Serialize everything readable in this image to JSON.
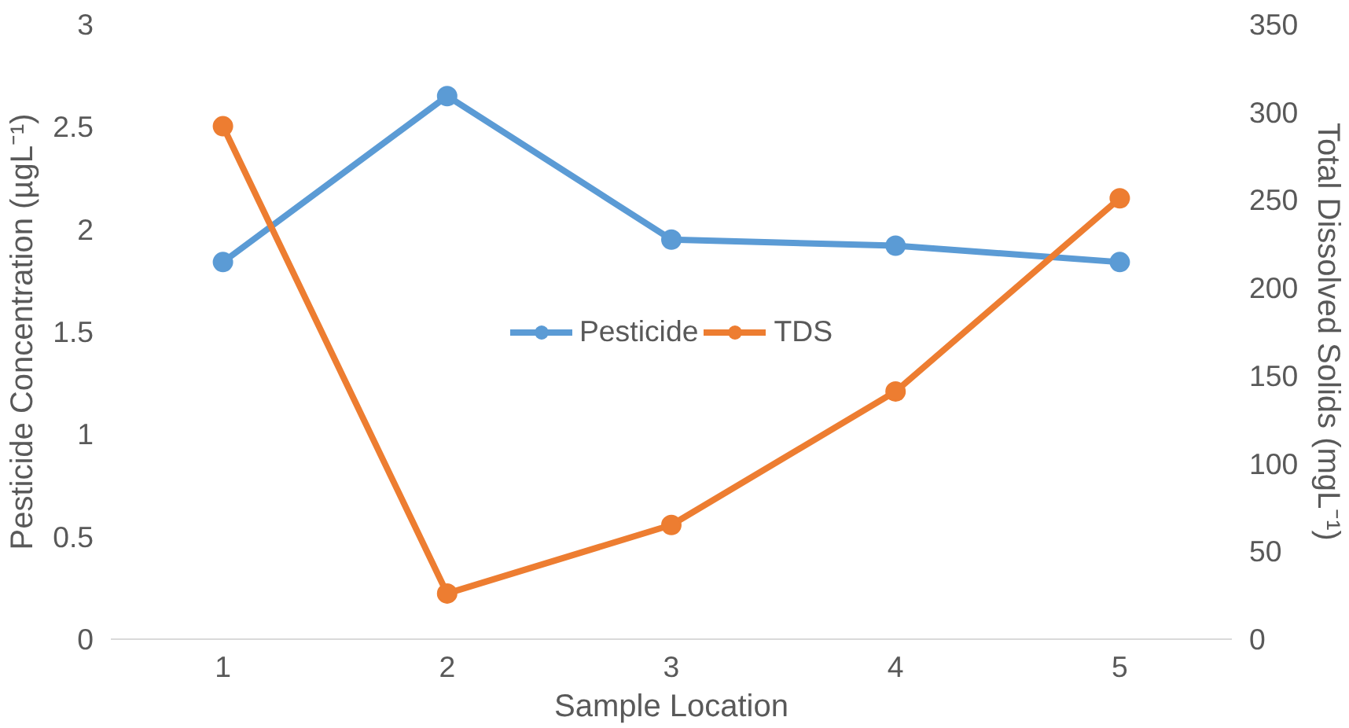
{
  "chart_data": {
    "type": "line",
    "xlabel": "Sample Location",
    "ylabel": "Pesticide Concentration (µgL⁻¹)",
    "y2label": "Total Dissolved Solids (mgL⁻¹)",
    "categories": [
      "1",
      "2",
      "3",
      "4",
      "5"
    ],
    "series": [
      {
        "name": "Pesticide",
        "color": "#5b9bd5",
        "values": [
          1.84,
          2.65,
          1.95,
          1.92,
          1.84
        ]
      },
      {
        "name": "TDS",
        "color": "#ed7d31",
        "axis": "y2",
        "values": [
          292,
          26,
          65,
          141,
          251
        ]
      }
    ],
    "ylim": [
      0,
      3
    ],
    "yticks": [
      0,
      0.5,
      1,
      1.5,
      2,
      2.5,
      3
    ],
    "y2lim": [
      0,
      350
    ],
    "y2ticks": [
      0,
      50,
      100,
      150,
      200,
      250,
      300,
      350
    ],
    "grid": false,
    "legend": "center",
    "marker": "circle"
  }
}
